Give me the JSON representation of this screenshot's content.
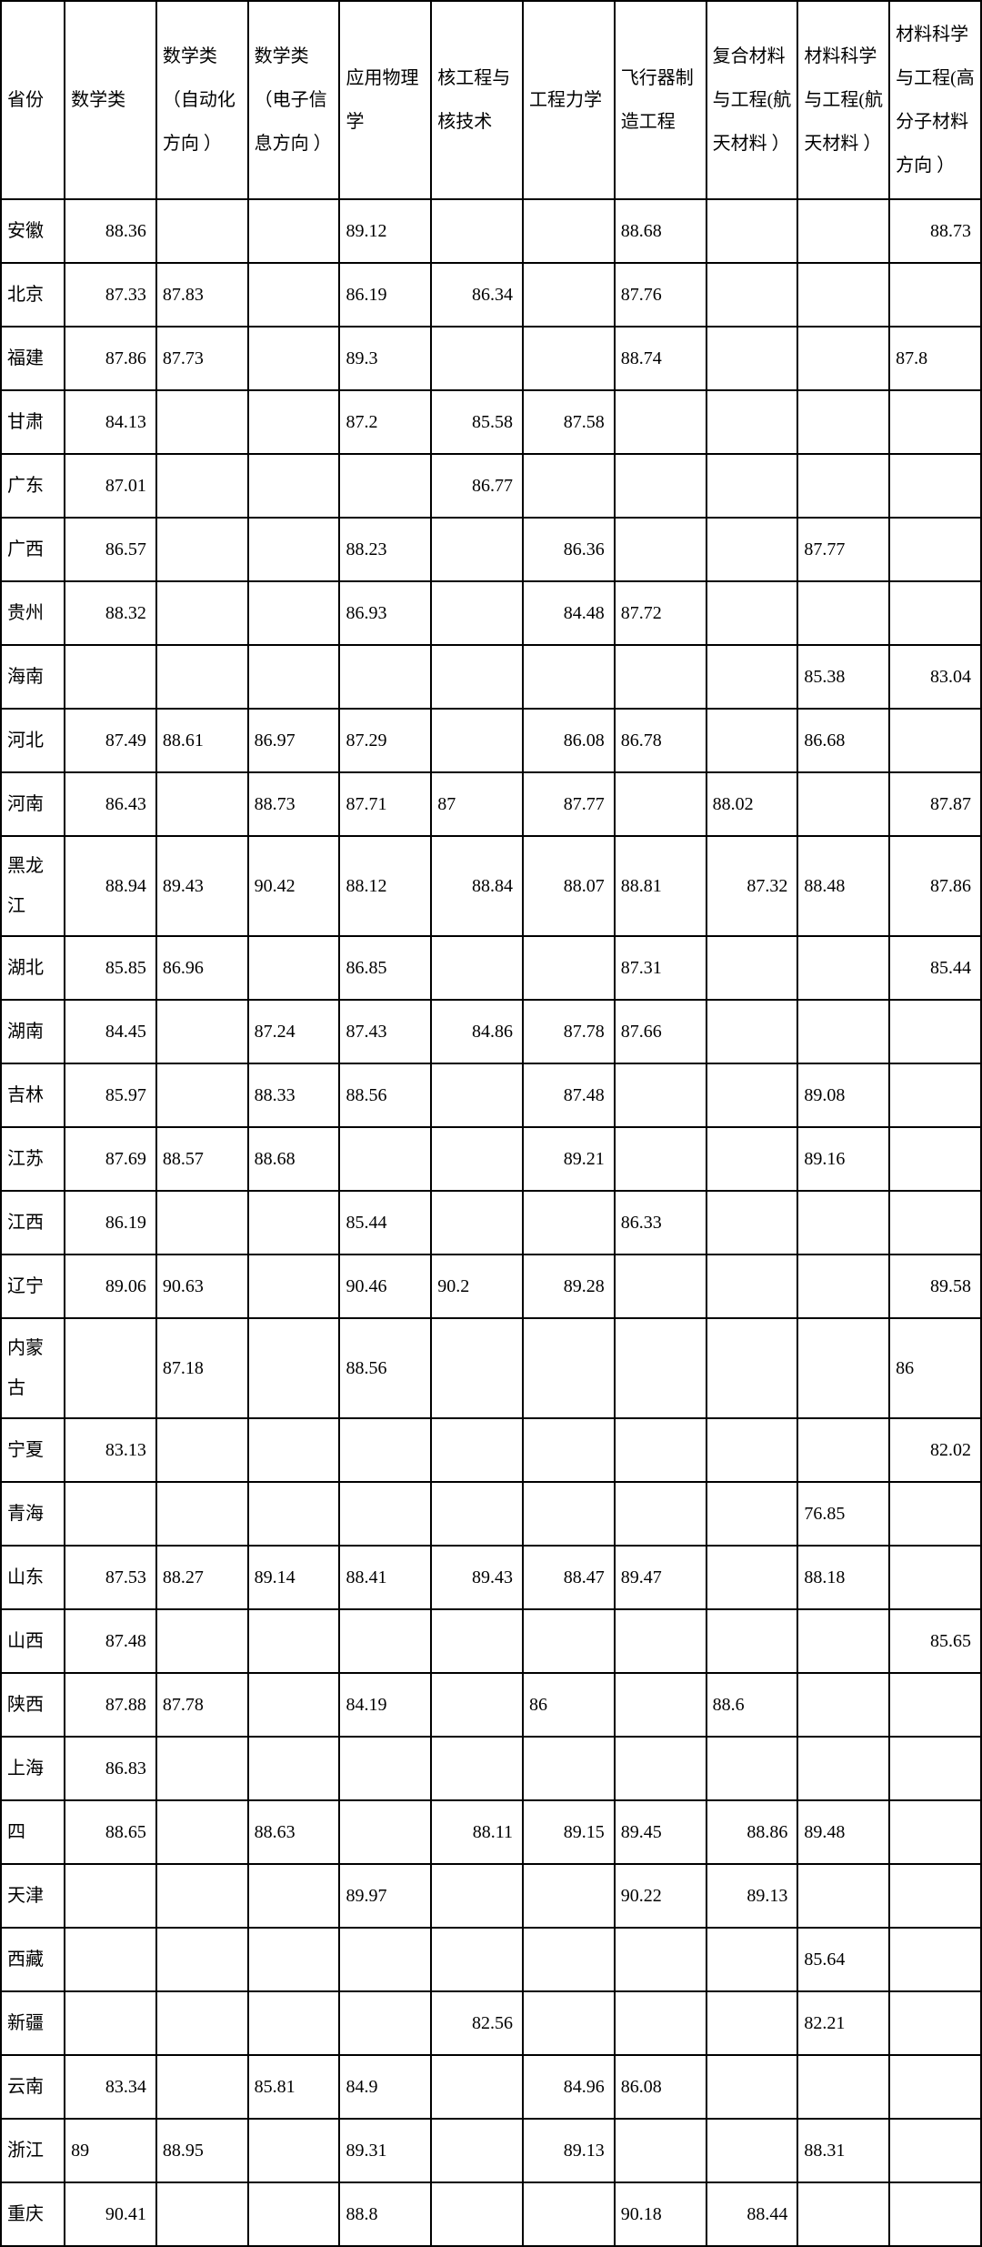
{
  "table": {
    "columns": [
      "省份",
      "数学类",
      "数学类（自动化方向 ）",
      "数学类（电子信息方向 ）",
      "应用物理学",
      "核工程与核技术",
      "工程力学",
      "飞行器制造工程",
      "复合材料与工程(航天材料 ）",
      "材料科学与工程(航天材料 ）",
      "材料科学与工程(高分子材料方向 ）"
    ],
    "rows": [
      {
        "province": "安徽",
        "cells": [
          "88.36",
          "",
          "",
          "89.12",
          "",
          "",
          "88.68",
          "",
          "",
          "88.73"
        ],
        "align": [
          "r",
          "",
          "",
          "l",
          "",
          "",
          "l",
          "",
          "",
          "r"
        ]
      },
      {
        "province": "北京",
        "cells": [
          "87.33",
          "87.83",
          "",
          "86.19",
          "86.34",
          "",
          "87.76",
          "",
          "",
          ""
        ],
        "align": [
          "r",
          "l",
          "",
          "l",
          "r",
          "",
          "l",
          "",
          "",
          ""
        ]
      },
      {
        "province": "福建",
        "cells": [
          "87.86",
          "87.73",
          "",
          "89.3",
          "",
          "",
          "88.74",
          "",
          "",
          "87.8"
        ],
        "align": [
          "r",
          "l",
          "",
          "l",
          "",
          "",
          "l",
          "",
          "",
          "l"
        ]
      },
      {
        "province": "甘肃",
        "cells": [
          "84.13",
          "",
          "",
          "87.2",
          "85.58",
          "87.58",
          "",
          "",
          "",
          ""
        ],
        "align": [
          "r",
          "",
          "",
          "l",
          "r",
          "r",
          "",
          "",
          "",
          ""
        ]
      },
      {
        "province": "广东",
        "cells": [
          "87.01",
          "",
          "",
          "",
          "86.77",
          "",
          "",
          "",
          "",
          ""
        ],
        "align": [
          "r",
          "",
          "",
          "",
          "r",
          "",
          "",
          "",
          "",
          ""
        ]
      },
      {
        "province": "广西",
        "cells": [
          "86.57",
          "",
          "",
          "88.23",
          "",
          "86.36",
          "",
          "",
          "87.77",
          ""
        ],
        "align": [
          "r",
          "",
          "",
          "l",
          "",
          "r",
          "",
          "",
          "l",
          ""
        ]
      },
      {
        "province": "贵州",
        "cells": [
          "88.32",
          "",
          "",
          "86.93",
          "",
          "84.48",
          "87.72",
          "",
          "",
          ""
        ],
        "align": [
          "r",
          "",
          "",
          "l",
          "",
          "r",
          "l",
          "",
          "",
          ""
        ]
      },
      {
        "province": "海南",
        "cells": [
          "",
          "",
          "",
          "",
          "",
          "",
          "",
          "",
          "85.38",
          "83.04"
        ],
        "align": [
          "",
          "",
          "",
          "",
          "",
          "",
          "",
          "",
          "l",
          "r"
        ]
      },
      {
        "province": "河北",
        "cells": [
          "87.49",
          "88.61",
          "86.97",
          "87.29",
          "",
          "86.08",
          "86.78",
          "",
          "86.68",
          ""
        ],
        "align": [
          "r",
          "l",
          "l",
          "l",
          "",
          "r",
          "l",
          "",
          "l",
          ""
        ]
      },
      {
        "province": "河南",
        "cells": [
          "86.43",
          "",
          "88.73",
          "87.71",
          "87",
          "87.77",
          "",
          "88.02",
          "",
          "87.87"
        ],
        "align": [
          "r",
          "",
          "l",
          "l",
          "l",
          "r",
          "",
          "l",
          "",
          "r"
        ]
      },
      {
        "province": "黑龙江",
        "cells": [
          "88.94",
          "89.43",
          "90.42",
          "88.12",
          "88.84",
          "88.07",
          "88.81",
          "87.32",
          "88.48",
          "87.86"
        ],
        "align": [
          "r",
          "l",
          "l",
          "l",
          "r",
          "r",
          "l",
          "r",
          "l",
          "r"
        ]
      },
      {
        "province": "湖北",
        "cells": [
          "85.85",
          "86.96",
          "",
          "86.85",
          "",
          "",
          "87.31",
          "",
          "",
          "85.44"
        ],
        "align": [
          "r",
          "l",
          "",
          "l",
          "",
          "",
          "l",
          "",
          "",
          "r"
        ]
      },
      {
        "province": "湖南",
        "cells": [
          "84.45",
          "",
          "87.24",
          "87.43",
          "84.86",
          "87.78",
          "87.66",
          "",
          "",
          ""
        ],
        "align": [
          "r",
          "",
          "l",
          "l",
          "r",
          "r",
          "l",
          "",
          "",
          ""
        ]
      },
      {
        "province": "吉林",
        "cells": [
          "85.97",
          "",
          "88.33",
          "88.56",
          "",
          "87.48",
          "",
          "",
          "89.08",
          ""
        ],
        "align": [
          "r",
          "",
          "l",
          "l",
          "",
          "r",
          "",
          "",
          "l",
          ""
        ]
      },
      {
        "province": "江苏",
        "cells": [
          "87.69",
          "88.57",
          "88.68",
          "",
          "",
          "89.21",
          "",
          "",
          "89.16",
          ""
        ],
        "align": [
          "r",
          "l",
          "l",
          "",
          "",
          "r",
          "",
          "",
          "l",
          ""
        ]
      },
      {
        "province": "江西",
        "cells": [
          "86.19",
          "",
          "",
          "85.44",
          "",
          "",
          "86.33",
          "",
          "",
          ""
        ],
        "align": [
          "r",
          "",
          "",
          "l",
          "",
          "",
          "l",
          "",
          "",
          ""
        ]
      },
      {
        "province": "辽宁",
        "cells": [
          "89.06",
          "90.63",
          "",
          "90.46",
          "90.2",
          "89.28",
          "",
          "",
          "",
          "89.58"
        ],
        "align": [
          "r",
          "l",
          "",
          "l",
          "l",
          "r",
          "",
          "",
          "",
          "r"
        ]
      },
      {
        "province": "内蒙古",
        "cells": [
          "",
          "87.18",
          "",
          "88.56",
          "",
          "",
          "",
          "",
          "",
          "86"
        ],
        "align": [
          "",
          "l",
          "",
          "l",
          "",
          "",
          "",
          "",
          "",
          "l"
        ]
      },
      {
        "province": "宁夏",
        "cells": [
          "83.13",
          "",
          "",
          "",
          "",
          "",
          "",
          "",
          "",
          "82.02"
        ],
        "align": [
          "r",
          "",
          "",
          "",
          "",
          "",
          "",
          "",
          "",
          "r"
        ]
      },
      {
        "province": "青海",
        "cells": [
          "",
          "",
          "",
          "",
          "",
          "",
          "",
          "",
          "76.85",
          ""
        ],
        "align": [
          "",
          "",
          "",
          "",
          "",
          "",
          "",
          "",
          "l",
          ""
        ]
      },
      {
        "province": "山东",
        "cells": [
          "87.53",
          "88.27",
          "89.14",
          "88.41",
          "89.43",
          "88.47",
          "89.47",
          "",
          "88.18",
          ""
        ],
        "align": [
          "r",
          "l",
          "l",
          "l",
          "r",
          "r",
          "l",
          "",
          "l",
          ""
        ]
      },
      {
        "province": "山西",
        "cells": [
          "87.48",
          "",
          "",
          "",
          "",
          "",
          "",
          "",
          "",
          "85.65"
        ],
        "align": [
          "r",
          "",
          "",
          "",
          "",
          "",
          "",
          "",
          "",
          "r"
        ]
      },
      {
        "province": "陕西",
        "cells": [
          "87.88",
          "87.78",
          "",
          "84.19",
          "",
          "86",
          "",
          "88.6",
          "",
          ""
        ],
        "align": [
          "r",
          "l",
          "",
          "l",
          "",
          "l",
          "",
          "l",
          "",
          ""
        ]
      },
      {
        "province": "上海",
        "cells": [
          "86.83",
          "",
          "",
          "",
          "",
          "",
          "",
          "",
          "",
          ""
        ],
        "align": [
          "r",
          "",
          "",
          "",
          "",
          "",
          "",
          "",
          "",
          ""
        ]
      },
      {
        "province": "四",
        "cells": [
          "88.65",
          "",
          "88.63",
          "",
          "88.11",
          "89.15",
          "89.45",
          "88.86",
          "89.48",
          ""
        ],
        "align": [
          "r",
          "",
          "l",
          "",
          "r",
          "r",
          "l",
          "r",
          "l",
          ""
        ]
      },
      {
        "province": "天津",
        "cells": [
          "",
          "",
          "",
          "89.97",
          "",
          "",
          "90.22",
          "89.13",
          "",
          ""
        ],
        "align": [
          "",
          "",
          "",
          "l",
          "",
          "",
          "l",
          "r",
          "",
          ""
        ]
      },
      {
        "province": "西藏",
        "cells": [
          "",
          "",
          "",
          "",
          "",
          "",
          "",
          "",
          "85.64",
          ""
        ],
        "align": [
          "",
          "",
          "",
          "",
          "",
          "",
          "",
          "",
          "l",
          ""
        ]
      },
      {
        "province": "新疆",
        "cells": [
          "",
          "",
          "",
          "",
          "82.56",
          "",
          "",
          "",
          "82.21",
          ""
        ],
        "align": [
          "",
          "",
          "",
          "",
          "r",
          "",
          "",
          "",
          "l",
          ""
        ]
      },
      {
        "province": "云南",
        "cells": [
          "83.34",
          "",
          "85.81",
          "84.9",
          "",
          "84.96",
          "86.08",
          "",
          "",
          ""
        ],
        "align": [
          "r",
          "",
          "l",
          "l",
          "",
          "r",
          "l",
          "",
          "",
          ""
        ]
      },
      {
        "province": "浙江",
        "cells": [
          "89",
          "88.95",
          "",
          "89.31",
          "",
          "89.13",
          "",
          "",
          "88.31",
          ""
        ],
        "align": [
          "l",
          "l",
          "",
          "l",
          "",
          "r",
          "",
          "",
          "l",
          ""
        ]
      },
      {
        "province": "重庆",
        "cells": [
          "90.41",
          "",
          "",
          "88.8",
          "",
          "",
          "90.18",
          "88.44",
          "",
          ""
        ],
        "align": [
          "r",
          "",
          "",
          "l",
          "",
          "",
          "l",
          "r",
          "",
          ""
        ]
      }
    ]
  }
}
